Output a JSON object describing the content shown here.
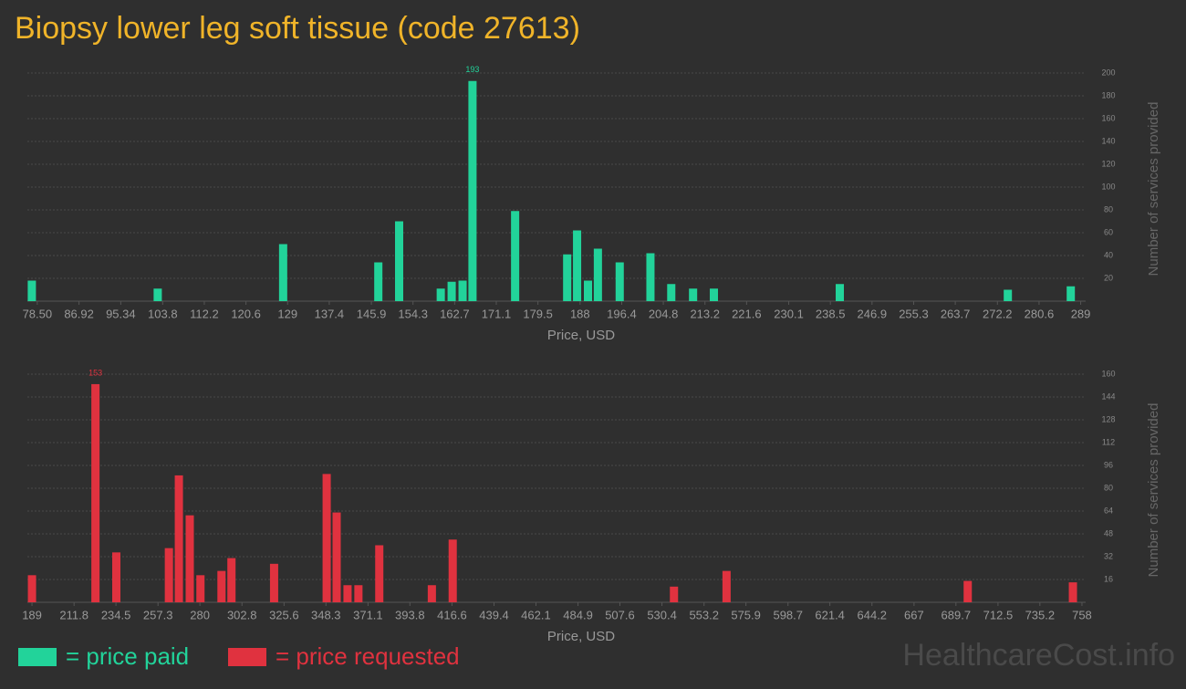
{
  "title": "Biopsy lower leg soft tissue (code 27613)",
  "watermark": "HealthcareCost.info",
  "chart_data": [
    {
      "type": "bar",
      "name": "= price paid",
      "color": "#22d39a",
      "xlabel": "Price, USD",
      "ylabel": "Number of services provided",
      "x": [
        77.4,
        102.8,
        128.1,
        147.3,
        151.5,
        159.9,
        162.1,
        164.3,
        166.3,
        174.9,
        185.4,
        187.4,
        189.6,
        191.6,
        196.0,
        202.2,
        206.4,
        210.8,
        215.0,
        240.4,
        274.3,
        287.0
      ],
      "values": [
        18,
        11,
        50,
        34,
        70,
        11,
        17,
        18,
        193,
        79,
        41,
        62,
        18,
        46,
        34,
        42,
        15,
        11,
        11,
        15,
        10,
        13
      ],
      "xlim": [
        76.5,
        290
      ],
      "xticks": [
        {
          "value": 78.5,
          "label": "78.50"
        },
        86.92,
        95.34,
        103.8,
        112.2,
        120.6,
        129,
        137.4,
        145.9,
        154.3,
        162.7,
        171.1,
        179.5,
        188,
        196.4,
        204.8,
        213.2,
        221.6,
        230.1,
        238.5,
        246.9,
        255.3,
        263.7,
        272.2,
        280.6,
        289
      ],
      "ylim": [
        0,
        200
      ],
      "yticks": [
        20,
        40,
        60,
        80,
        100,
        120,
        140,
        160,
        180,
        200
      ],
      "grid": true
    },
    {
      "type": "bar",
      "name": "= price requested",
      "color": "#e0323f",
      "xlabel": "Price, USD",
      "ylabel": "Number of services provided",
      "x": [
        189,
        223.4,
        234.7,
        263.2,
        268.6,
        274.5,
        280.3,
        291.7,
        297.1,
        320.2,
        348.7,
        354.1,
        360.0,
        365.9,
        377.2,
        405.7,
        417.0,
        536.9,
        565.4,
        696.1,
        753.1
      ],
      "values": [
        19,
        153,
        35,
        38,
        89,
        61,
        19,
        22,
        31,
        27,
        90,
        63,
        12,
        12,
        40,
        12,
        44,
        11,
        22,
        15,
        14
      ],
      "xlim": [
        186.5,
        760
      ],
      "xticks": [
        189,
        211.8,
        234.5,
        257.3,
        280,
        302.8,
        325.6,
        348.3,
        371.1,
        393.8,
        416.6,
        439.4,
        462.1,
        484.9,
        507.6,
        530.4,
        553.2,
        575.9,
        598.7,
        621.4,
        644.2,
        667,
        689.7,
        712.5,
        735.2,
        758
      ],
      "ylim": [
        0,
        160
      ],
      "yticks": [
        16,
        32,
        48,
        64,
        80,
        96,
        112,
        128,
        144,
        160
      ],
      "grid": true
    }
  ]
}
